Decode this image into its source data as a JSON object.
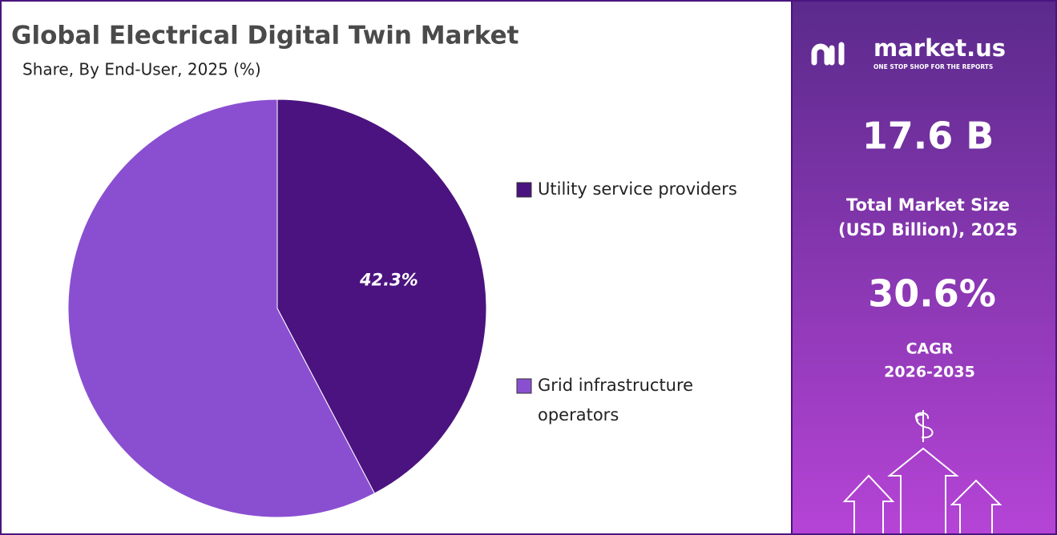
{
  "chart_data": {
    "type": "pie",
    "title": "Global Electrical Digital Twin Market",
    "subtitle": "Share, By End-User, 2025 (%)",
    "categories": [
      "Utility service providers",
      "Grid infrastructure operators"
    ],
    "values": [
      42.3,
      57.7
    ],
    "value_labels": [
      "42.3%",
      null
    ],
    "colors": [
      "#4b1380",
      "#8a4fd1"
    ],
    "legend": "right"
  },
  "sidebar": {
    "brand": "market.us",
    "tagline": "ONE STOP SHOP FOR THE REPORTS",
    "market_size": "17.6 B",
    "market_size_label": [
      "Total Market Size",
      "(USD Billion), 2025"
    ],
    "cagr": "30.6%",
    "cagr_label": [
      "CAGR",
      "2026-2035"
    ]
  }
}
